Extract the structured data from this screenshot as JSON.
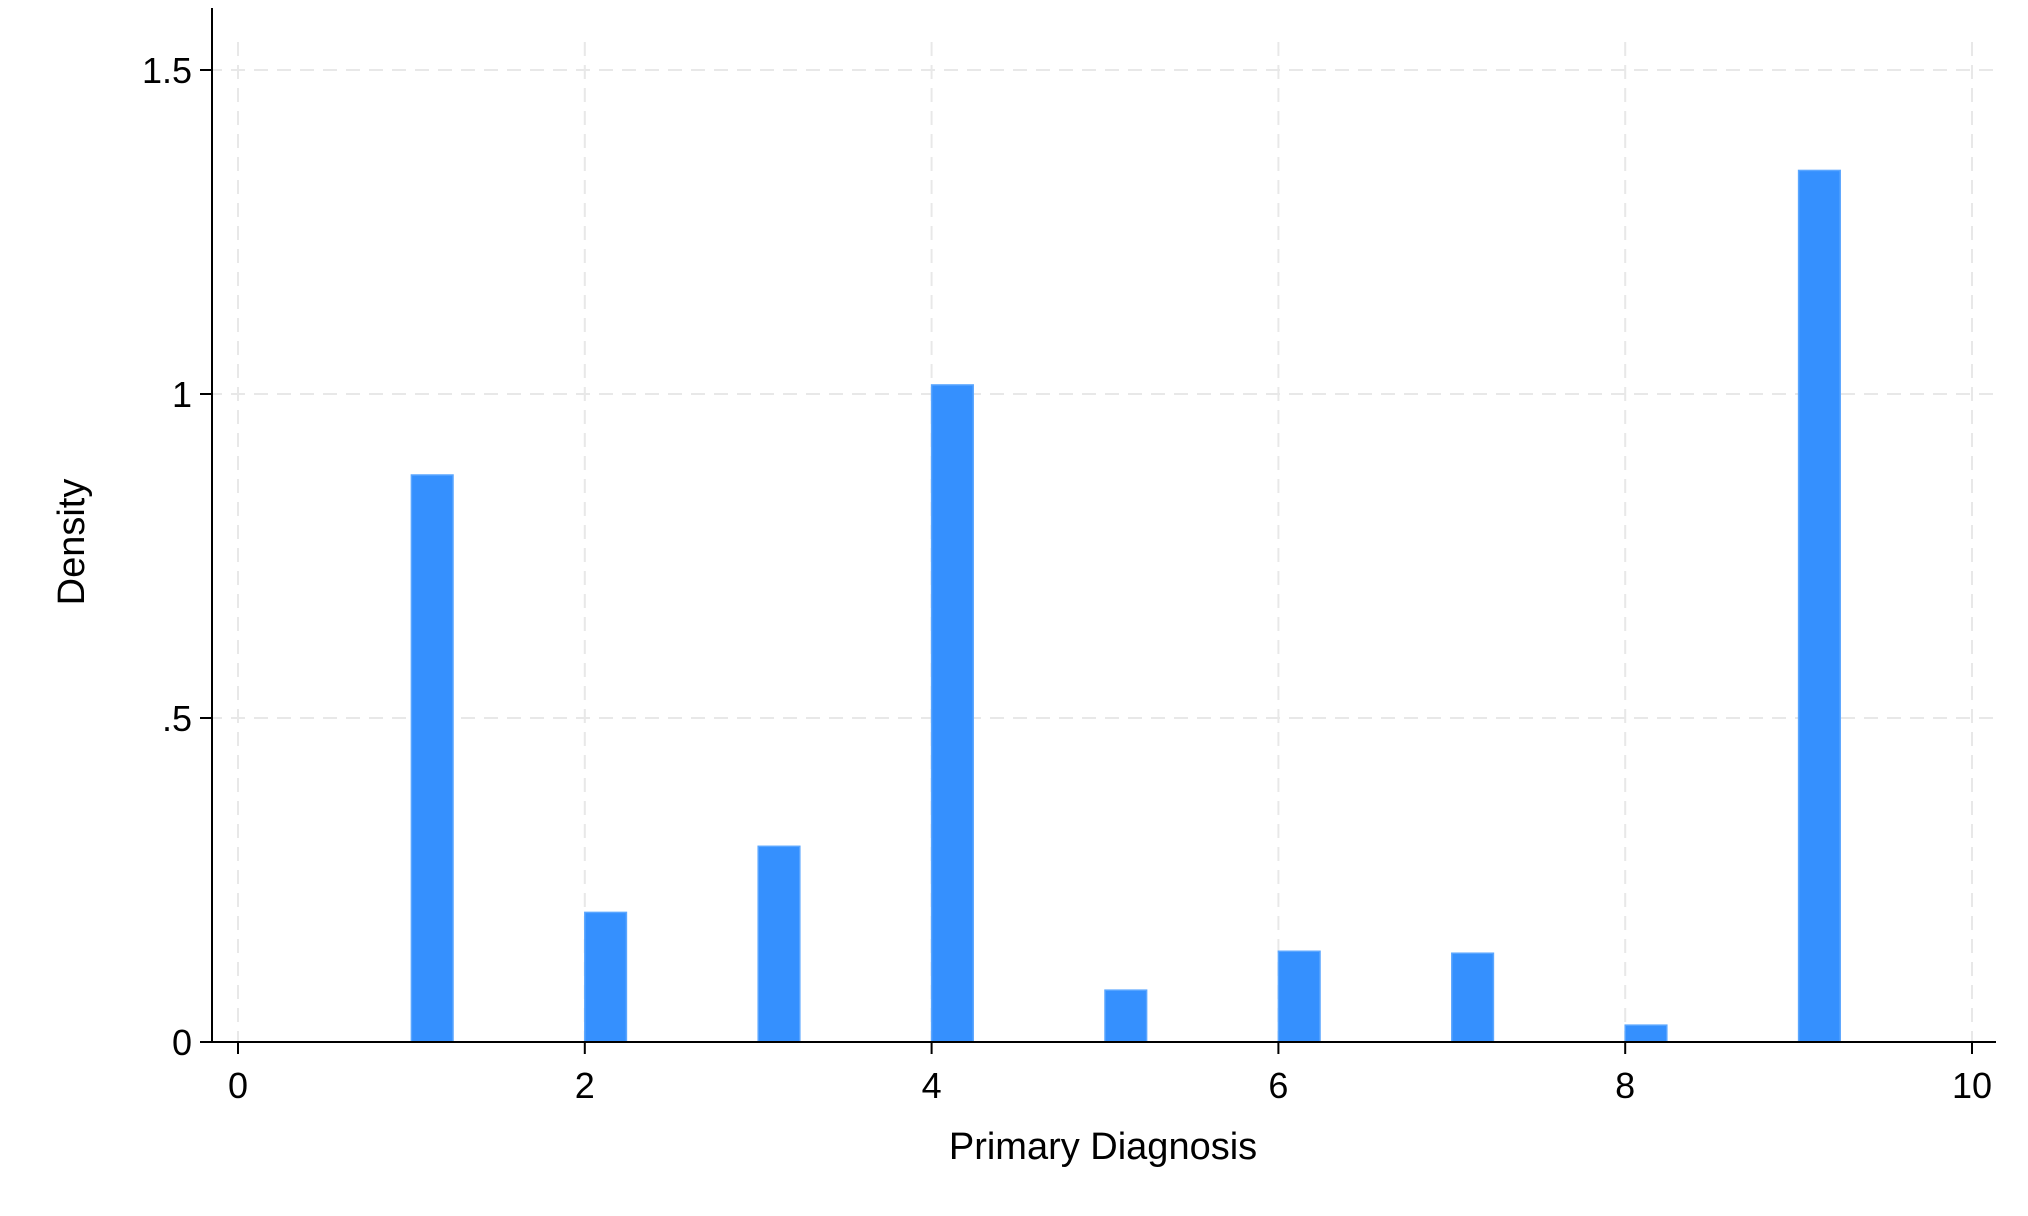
{
  "chart_data": {
    "type": "bar",
    "title": "",
    "xlabel": "Primary Diagnosis",
    "ylabel": "Density",
    "x_bin_starts": [
      1,
      2,
      3,
      4,
      5,
      6,
      7,
      8,
      9
    ],
    "bin_width": 0.24,
    "values": [
      0.875,
      0.2,
      0.302,
      1.014,
      0.08,
      0.14,
      0.137,
      0.026,
      1.345
    ],
    "xlim": [
      0,
      10
    ],
    "ylim": [
      0,
      1.5
    ],
    "x_ticks": [
      0,
      2,
      4,
      6,
      8,
      10
    ],
    "x_tick_labels": [
      "0",
      "2",
      "4",
      "6",
      "8",
      "10"
    ],
    "y_ticks": [
      0,
      0.5,
      1,
      1.5
    ],
    "y_tick_labels": [
      "0",
      ".5",
      "1",
      "1.5"
    ],
    "grid": true,
    "bar_color": "#3590FE",
    "bar_edge_color": "#5AA6FF",
    "grid_color": "#E8E8E8",
    "axis_color": "#000000"
  }
}
